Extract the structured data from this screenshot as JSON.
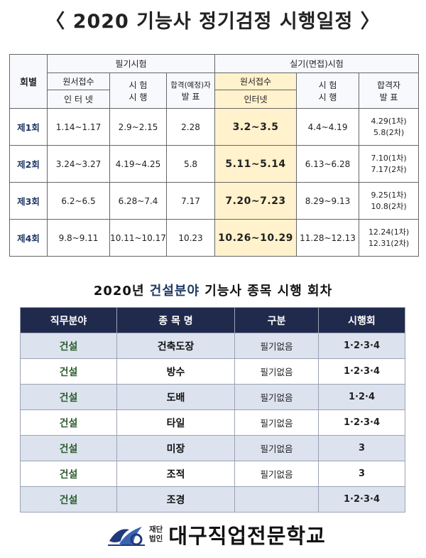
{
  "title": "〈 2020 기능사 정기검정 시행일정 〉",
  "schedule": {
    "round_header": "회별",
    "written_header": "필기시험",
    "practical_header": "실기(면접)시험",
    "written_apply_1": "원서접수",
    "written_apply_2": "인 터 넷",
    "written_exam_1": "시 험",
    "written_exam_2": "시 행",
    "written_result_1": "합격(예정)자",
    "written_result_2": "발  표",
    "practical_apply_1": "원서접수",
    "practical_apply_2": "인터넷",
    "practical_exam_1": "시 험",
    "practical_exam_2": "시 행",
    "practical_result_1": "합격자",
    "practical_result_2": "발  표",
    "rows": [
      {
        "round": "제1회",
        "w_apply": "1.14~1.17",
        "w_exam": "2.9~2.15",
        "w_result": "2.28",
        "p_apply": "3.2~3.5",
        "p_exam": "4.4~4.19",
        "p_result_1": "4.29(1차)",
        "p_result_2": "5.8(2차)"
      },
      {
        "round": "제2회",
        "w_apply": "3.24~3.27",
        "w_exam": "4.19~4.25",
        "w_result": "5.8",
        "p_apply": "5.11~5.14",
        "p_exam": "6.13~6.28",
        "p_result_1": "7.10(1차)",
        "p_result_2": "7.17(2차)"
      },
      {
        "round": "제3회",
        "w_apply": "6.2~6.5",
        "w_exam": "6.28~7.4",
        "w_result": "7.17",
        "p_apply": "7.20~7.23",
        "p_exam": "8.29~9.13",
        "p_result_1": "9.25(1차)",
        "p_result_2": "10.8(2차)"
      },
      {
        "round": "제4회",
        "w_apply": "9.8~9.11",
        "w_exam": "10.11~10.17",
        "w_result": "10.23",
        "p_apply": "10.26~10.29",
        "p_exam": "11.28~12.13",
        "p_result_1": "12.24(1차)",
        "p_result_2": "12.31(2차)"
      }
    ]
  },
  "subtitle_pre": "2020년 ",
  "subtitle_accent": "건설분야",
  "subtitle_post": " 기능사 종목 시행 회차",
  "trades": {
    "headers": [
      "직무분야",
      "종 목 명",
      "구분",
      "시행회"
    ],
    "rows": [
      {
        "field": "건설",
        "name": "건축도장",
        "type": "필기없음",
        "rounds": "1·2·3·4"
      },
      {
        "field": "건설",
        "name": "방수",
        "type": "필기없음",
        "rounds": "1·2·3·4"
      },
      {
        "field": "건설",
        "name": "도배",
        "type": "필기없음",
        "rounds": "1·2·4"
      },
      {
        "field": "건설",
        "name": "타일",
        "type": "필기없음",
        "rounds": "1·2·3·4"
      },
      {
        "field": "건설",
        "name": "미장",
        "type": "필기없음",
        "rounds": "3"
      },
      {
        "field": "건설",
        "name": "조적",
        "type": "필기없음",
        "rounds": "3"
      },
      {
        "field": "건설",
        "name": "조경",
        "type": "",
        "rounds": "1·2·3·4"
      }
    ]
  },
  "footer": {
    "corp_1": "재단",
    "corp_2": "법인",
    "school": "대구직업전문학교",
    "logo_icon": "school-logo-icon",
    "logo_color": "#1f3a7a"
  }
}
